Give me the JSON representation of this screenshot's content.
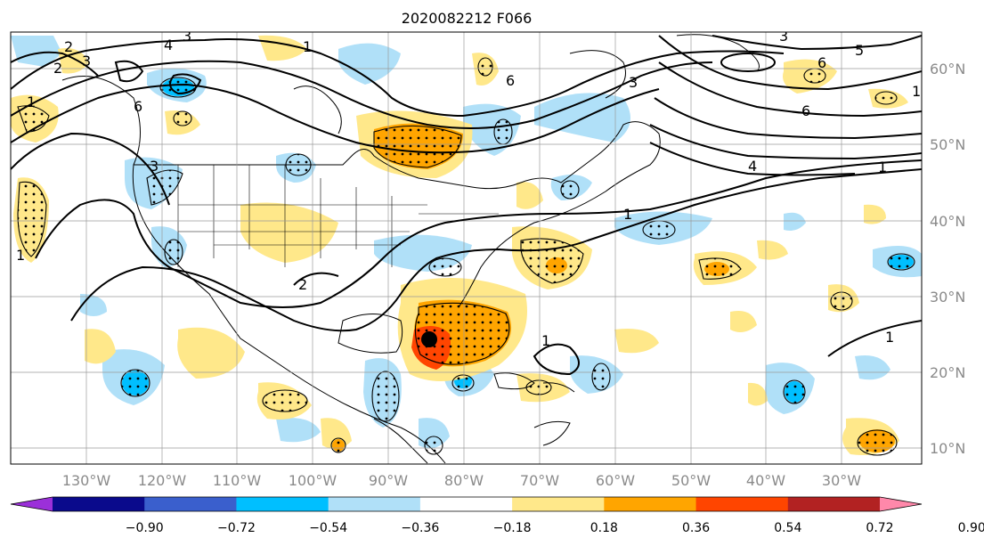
{
  "title": "2020082212 F066",
  "lon_ticks": [
    "130°W",
    "120°W",
    "110°W",
    "100°W",
    "90°W",
    "80°W",
    "70°W",
    "60°W",
    "50°W",
    "40°W",
    "30°W"
  ],
  "lat_ticks": [
    "60°N",
    "50°N",
    "40°N",
    "30°N",
    "20°N",
    "10°N"
  ],
  "colorbar": {
    "colors": [
      "#9b30d9",
      "#0a0a8c",
      "#3a5fcd",
      "#00bfff",
      "#b0e0f8",
      "#ffffff",
      "#ffe88a",
      "#ffa500",
      "#ff4500",
      "#b22222",
      "#ff88aa"
    ],
    "labels": [
      "−0.90",
      "−0.72",
      "−0.54",
      "−0.36",
      "−0.18",
      "0.18",
      "0.36",
      "0.54",
      "0.72",
      "0.90"
    ]
  },
  "contour_labels": [
    "2",
    "3",
    "4",
    "3",
    "1",
    "6",
    "3",
    "1",
    "2",
    "6",
    "5",
    "6",
    "3",
    "3",
    "6",
    "4",
    "1",
    "1",
    "1",
    "1",
    "1",
    "2",
    "1"
  ],
  "marker": "storm-center-dot"
}
